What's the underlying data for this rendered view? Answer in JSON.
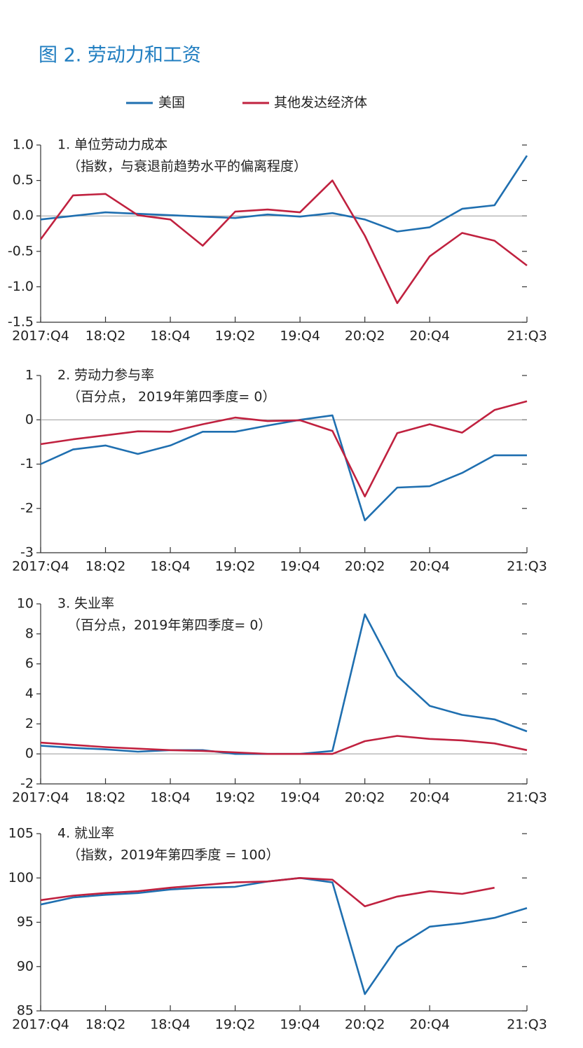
{
  "title": "图 2. 劳动力和工资",
  "chart_data": [
    {
      "type": "line",
      "title": "1. 单位劳动力成本",
      "subtitle": "（指数，与衰退前趋势水平的偏离程度）",
      "categories": [
        "2017:Q4",
        null,
        "18:Q2",
        null,
        "18:Q4",
        null,
        "19:Q2",
        null,
        "19:Q4",
        null,
        "20:Q2",
        null,
        "20:Q4",
        null,
        null,
        "21:Q3"
      ],
      "series": [
        {
          "name": "美国",
          "color": "#1f6fb0",
          "values": [
            -0.05,
            0.0,
            0.05,
            0.03,
            0.01,
            -0.01,
            -0.03,
            0.02,
            -0.01,
            0.04,
            -0.05,
            -0.22,
            -0.16,
            0.1,
            0.15,
            0.85
          ]
        },
        {
          "name": "其他发达经济体",
          "color": "#c0213f",
          "values": [
            -0.33,
            0.29,
            0.31,
            0.01,
            -0.05,
            -0.42,
            0.06,
            0.09,
            0.05,
            0.5,
            -0.28,
            -1.23,
            -0.57,
            -0.24,
            -0.35,
            -0.7
          ]
        }
      ],
      "ylim": [
        -1.5,
        1.0
      ],
      "yticks": [
        {
          "value": -1.5,
          "label": "-1.5"
        },
        {
          "value": -1,
          "label": "-1.0"
        },
        {
          "value": -0.5,
          "label": "-0.5"
        },
        {
          "value": 0,
          "label": "0.0"
        },
        {
          "value": 0.5,
          "label": "0.5"
        },
        {
          "value": 1,
          "label": "1.0"
        }
      ],
      "zero_line": true
    },
    {
      "type": "line",
      "title": "2. 劳动力参与率",
      "subtitle": "（百分点， 2019年第四季度= 0）",
      "categories": [
        "2017:Q4",
        null,
        "18:Q2",
        null,
        "18:Q4",
        null,
        "19:Q2",
        null,
        "19:Q4",
        null,
        "20:Q2",
        null,
        "20:Q4",
        null,
        null,
        "21:Q3"
      ],
      "series": [
        {
          "name": "美国",
          "color": "#1f6fb0",
          "values": [
            -1.0,
            -0.67,
            -0.58,
            -0.77,
            -0.58,
            -0.27,
            -0.27,
            -0.13,
            0.0,
            0.1,
            -2.27,
            -1.53,
            -1.5,
            -1.2,
            -0.8,
            -0.8
          ]
        },
        {
          "name": "其他发达经济体",
          "color": "#c0213f",
          "values": [
            -0.55,
            -0.44,
            -0.35,
            -0.26,
            -0.27,
            -0.1,
            0.05,
            -0.03,
            -0.01,
            -0.25,
            -1.73,
            -0.3,
            -0.1,
            -0.29,
            0.22,
            0.42
          ]
        }
      ],
      "ylim": [
        -3,
        1
      ],
      "yticks": [
        -3,
        -2,
        -1,
        0,
        1
      ],
      "zero_line": true
    },
    {
      "type": "line",
      "title": "3. 失业率",
      "subtitle": "（百分点，2019年第四季度= 0）",
      "categories": [
        "2017:Q4",
        null,
        "18:Q2",
        null,
        "18:Q4",
        null,
        "19:Q2",
        null,
        "19:Q4",
        null,
        "20:Q2",
        null,
        "20:Q4",
        null,
        null,
        "21:Q3"
      ],
      "series": [
        {
          "name": "美国",
          "color": "#1f6fb0",
          "values": [
            0.55,
            0.4,
            0.3,
            0.15,
            0.25,
            0.25,
            0.0,
            0.0,
            0.0,
            0.2,
            9.3,
            5.2,
            3.2,
            2.6,
            2.3,
            1.5
          ]
        },
        {
          "name": "其他发达经济体",
          "color": "#c0213f",
          "values": [
            0.75,
            0.6,
            0.45,
            0.35,
            0.25,
            0.2,
            0.1,
            0.0,
            0.0,
            0.0,
            0.85,
            1.2,
            1.0,
            0.9,
            0.7,
            0.25
          ]
        }
      ],
      "ylim": [
        -2,
        10
      ],
      "yticks": [
        -2,
        0,
        2,
        4,
        6,
        8,
        10
      ],
      "zero_line": true
    },
    {
      "type": "line",
      "title": "4. 就业率",
      "subtitle": "（指数，2019年第四季度 = 100）",
      "categories": [
        "2017:Q4",
        null,
        "18:Q2",
        null,
        "18:Q4",
        null,
        "19:Q2",
        null,
        "19:Q4",
        null,
        "20:Q2",
        null,
        "20:Q4",
        null,
        null,
        "21:Q3"
      ],
      "series": [
        {
          "name": "美国",
          "color": "#1f6fb0",
          "values": [
            97.0,
            97.8,
            98.1,
            98.3,
            98.7,
            98.9,
            99.0,
            99.6,
            100.0,
            99.5,
            86.9,
            92.2,
            94.5,
            94.9,
            95.5,
            96.6
          ]
        },
        {
          "name": "其他发达经济体",
          "color": "#c0213f",
          "values": [
            97.5,
            98.0,
            98.3,
            98.5,
            98.9,
            99.2,
            99.5,
            99.6,
            100.0,
            99.8,
            96.8,
            97.9,
            98.5,
            98.2,
            98.9,
            null
          ]
        }
      ],
      "ylim": [
        85,
        105
      ],
      "yticks": [
        85,
        90,
        95,
        100,
        105
      ],
      "zero_line": false
    }
  ]
}
